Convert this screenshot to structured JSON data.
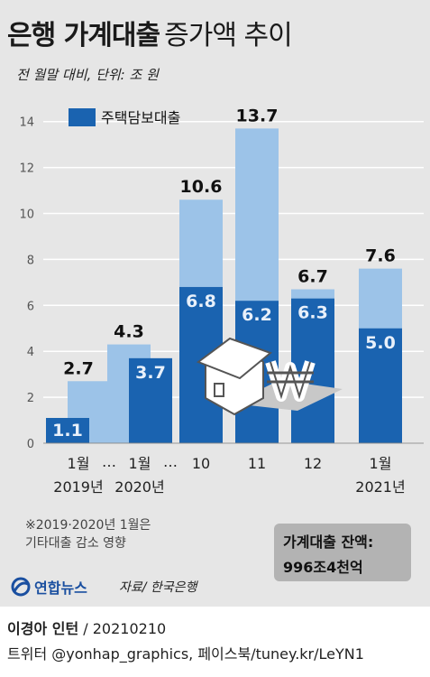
{
  "header": {
    "title_bold": "은행 가계대출",
    "title_light": "증가액 추이",
    "subtitle": "전 월말 대비, 단위: 조 원"
  },
  "chart_data": {
    "type": "bar",
    "categories": [
      "1월 2019년",
      "1월 2020년",
      "10",
      "11",
      "12",
      "1월 2021년"
    ],
    "x_labels_line1": [
      "1월",
      "1월",
      "10",
      "11",
      "12",
      "1월"
    ],
    "x_labels_line2": [
      "2019년",
      "2020년",
      "",
      "",
      "",
      "2021년"
    ],
    "ellipsis": [
      "…",
      "…"
    ],
    "series": [
      {
        "values": [
          2.7,
          4.3,
          10.6,
          13.7,
          6.7,
          7.6
        ],
        "color": "#9cc3e8",
        "label_color": "#111111"
      },
      {
        "name": "주택담보대출",
        "values": [
          1.1,
          3.7,
          6.8,
          6.2,
          6.3,
          5.0
        ],
        "color": "#1a63b0",
        "label_color": "#e8f0fa"
      }
    ],
    "y_ticks": [
      0,
      2,
      4,
      6,
      8,
      10,
      12,
      14
    ],
    "ylim": [
      0,
      14.5
    ],
    "legend_label": "주택담보대출",
    "grid": true
  },
  "notes": {
    "footnote_line1": "※2019·2020년 1월은",
    "footnote_line2": "기타대출 감소 영향"
  },
  "balance": {
    "label": "가계대출 잔액:",
    "value": "996조4천억"
  },
  "logo": {
    "text": "연합뉴스"
  },
  "source": "자료/ 한국은행",
  "credit": {
    "author": "이경아 인턴",
    "date": "/ 20210210",
    "social": "트위터 @yonhap_graphics, 페이스북/tuney.kr/LeYN1"
  },
  "colors": {
    "background": "#e6e6e6",
    "total_bar": "#9cc3e8",
    "mortgage_bar": "#1a63b0",
    "gridline": "#ffffff",
    "icon_outline": "#555555"
  }
}
